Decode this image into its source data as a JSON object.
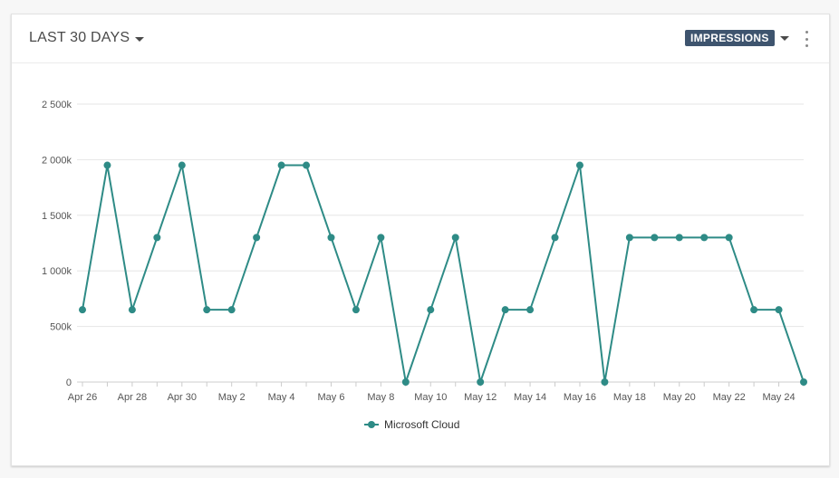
{
  "header": {
    "range_label": "LAST 30 DAYS",
    "metric_label": "IMPRESSIONS"
  },
  "chart_data": {
    "type": "line",
    "title": "",
    "xlabel": "",
    "ylabel": "",
    "ylim": [
      0,
      2500000
    ],
    "y_ticks": [
      0,
      500000,
      1000000,
      1500000,
      2000000,
      2500000
    ],
    "y_tick_labels": [
      "0",
      "500k",
      "1 000k",
      "1 500k",
      "2 000k",
      "2 500k"
    ],
    "x": [
      "Apr 26",
      "Apr 27",
      "Apr 28",
      "Apr 29",
      "Apr 30",
      "May 1",
      "May 2",
      "May 3",
      "May 4",
      "May 5",
      "May 6",
      "May 7",
      "May 8",
      "May 9",
      "May 10",
      "May 11",
      "May 12",
      "May 13",
      "May 14",
      "May 15",
      "May 16",
      "May 17",
      "May 18",
      "May 19",
      "May 20",
      "May 21",
      "May 22",
      "May 23",
      "May 24",
      "May 25"
    ],
    "x_tick_labels": [
      "Apr 26",
      "Apr 28",
      "Apr 30",
      "May 2",
      "May 4",
      "May 6",
      "May 8",
      "May 10",
      "May 12",
      "May 14",
      "May 16",
      "May 18",
      "May 20",
      "May 22",
      "May 24"
    ],
    "grid": true,
    "legend_position": "bottom-center",
    "series": [
      {
        "name": "Microsoft Cloud",
        "color": "#2e8b86",
        "values": [
          650000,
          1950000,
          650000,
          1300000,
          1950000,
          650000,
          650000,
          1300000,
          1950000,
          1950000,
          1300000,
          650000,
          1300000,
          0,
          650000,
          1300000,
          0,
          650000,
          650000,
          1300000,
          1950000,
          0,
          1300000,
          1300000,
          1300000,
          1300000,
          1300000,
          650000,
          650000,
          0
        ]
      }
    ]
  }
}
